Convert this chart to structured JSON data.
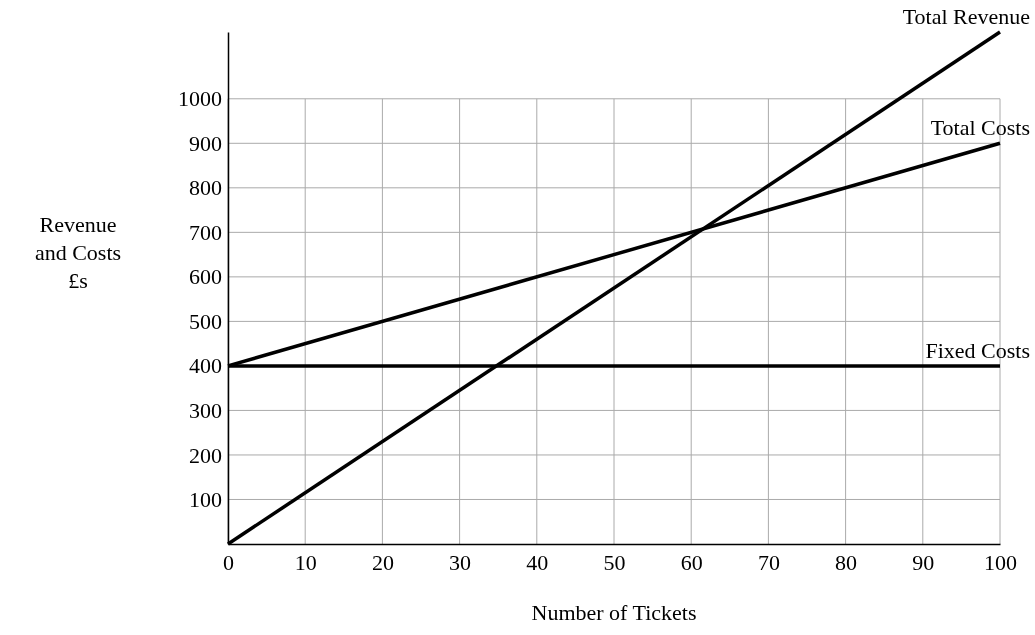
{
  "chart_data": {
    "type": "line",
    "xlabel": "Number of Tickets",
    "ylabel": "Revenue\nand Costs\n£s",
    "xlim": [
      0,
      100
    ],
    "ylim": [
      0,
      1150
    ],
    "xticks": [
      0,
      10,
      20,
      30,
      40,
      50,
      60,
      70,
      80,
      90,
      100
    ],
    "yticks": [
      100,
      200,
      300,
      400,
      500,
      600,
      700,
      800,
      900,
      1000
    ],
    "grid": true,
    "legend": false,
    "marker": "none",
    "line_style": "solid",
    "x": [
      0,
      100
    ],
    "series": [
      {
        "name": "Total Revenue",
        "color": "#000000",
        "values": [
          0,
          1150
        ]
      },
      {
        "name": "Total Costs",
        "color": "#000000",
        "values": [
          400,
          900
        ]
      },
      {
        "name": "Fixed Costs",
        "color": "#000000",
        "values": [
          400,
          400
        ]
      }
    ]
  }
}
